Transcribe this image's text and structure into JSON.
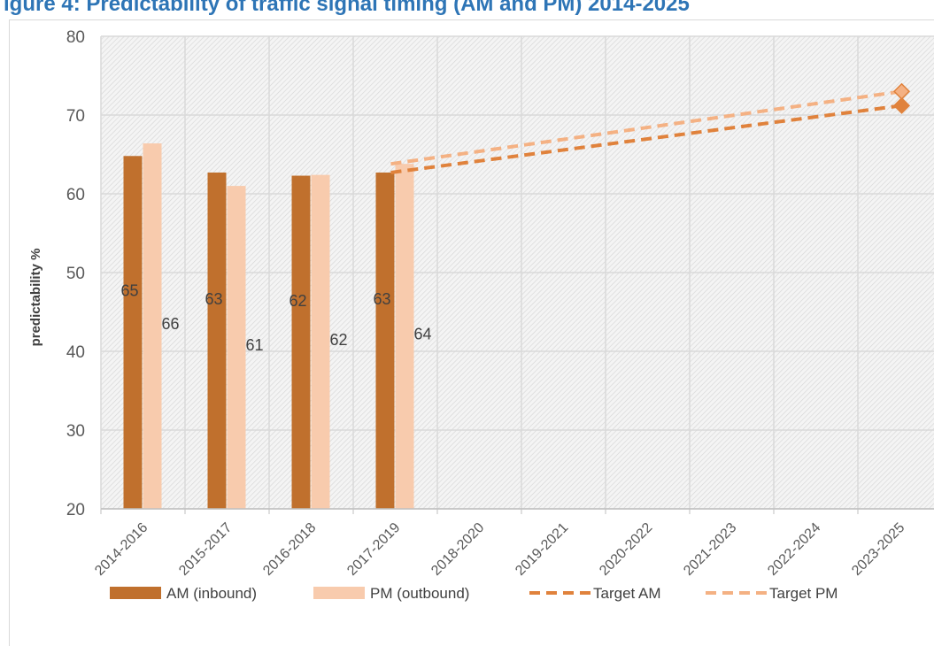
{
  "header": {
    "title": "igure 4: Predictability of traffic signal timing (AM and PM) 2014-2025"
  },
  "colors": {
    "am": "#c0702d",
    "pm": "#f8cbad",
    "target_am": "#e0823c",
    "target_pm": "#f4b183",
    "grid": "#d9d9d9",
    "plot_bg": "#f2f2f2"
  },
  "chart_data": {
    "type": "bar",
    "categories": [
      "2014-2016",
      "2015-2017",
      "2016-2018",
      "2017-2019",
      "2018-2020",
      "2019-2021",
      "2020-2022",
      "2021-2023",
      "2022-2024",
      "2023-2025"
    ],
    "series": [
      {
        "name": "AM (inbound)",
        "kind": "bar",
        "values": [
          64.8,
          62.7,
          62.3,
          62.7,
          null,
          null,
          null,
          null,
          null,
          null
        ],
        "labels": [
          "65",
          "63",
          "62",
          "63"
        ]
      },
      {
        "name": "PM (outbound)",
        "kind": "bar",
        "values": [
          66.4,
          61.0,
          62.4,
          63.8,
          null,
          null,
          null,
          null,
          null,
          null
        ],
        "labels": [
          "66",
          "61",
          "62",
          "64"
        ]
      },
      {
        "name": "Target AM",
        "kind": "dashed-line",
        "points": [
          {
            "x": "2017-2019",
            "y": 62.7
          },
          {
            "x": "2023-2025",
            "y": 71.2
          }
        ]
      },
      {
        "name": "Target PM",
        "kind": "dashed-line",
        "points": [
          {
            "x": "2017-2019",
            "y": 63.8
          },
          {
            "x": "2023-2025",
            "y": 73.0
          }
        ]
      }
    ],
    "xlabel": "",
    "ylabel": "predictability %",
    "ylim": [
      20,
      80
    ],
    "yticks": [
      20,
      30,
      40,
      50,
      60,
      70,
      80
    ],
    "grid": true,
    "legend_position": "bottom"
  }
}
